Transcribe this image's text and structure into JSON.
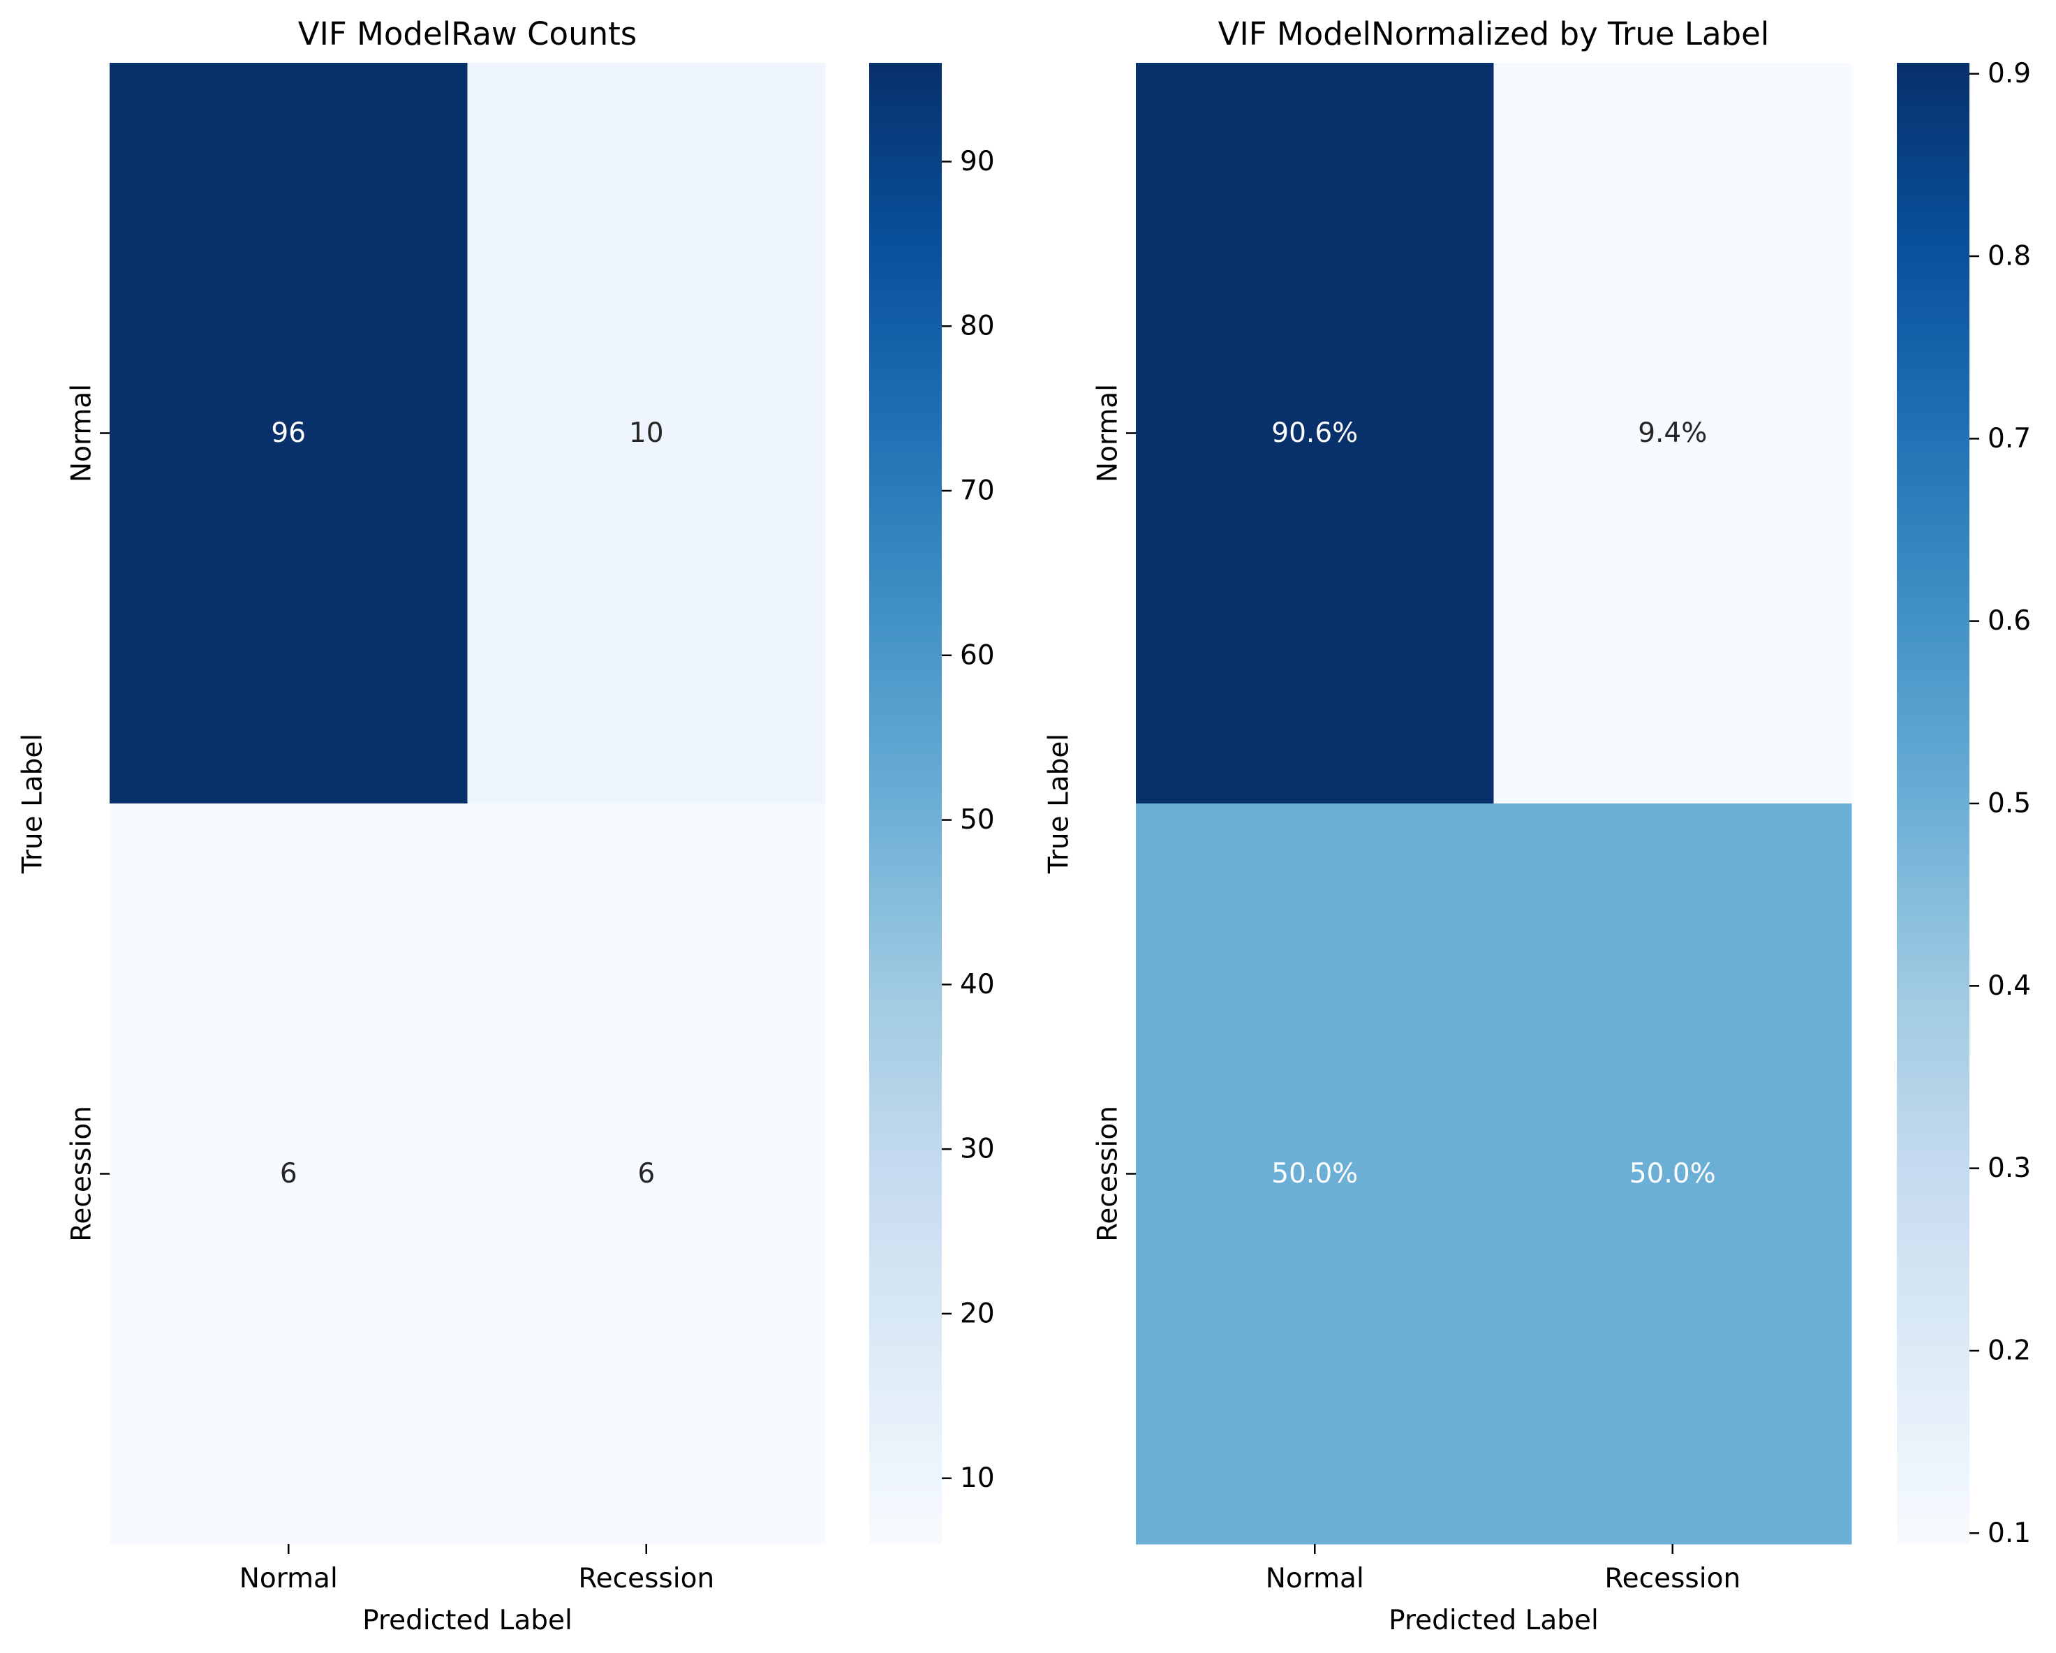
{
  "chart_data": [
    {
      "type": "heatmap",
      "title": "VIF ModelRaw Counts",
      "xlabel": "Predicted Label",
      "ylabel": "True Label",
      "x_categories": [
        "Normal",
        "Recession"
      ],
      "y_categories": [
        "Normal",
        "Recession"
      ],
      "values": [
        [
          96,
          10
        ],
        [
          6,
          6
        ]
      ],
      "cell_labels": [
        [
          "96",
          "10"
        ],
        [
          "6",
          "6"
        ]
      ],
      "colormap": "Blues",
      "vmin": 6,
      "vmax": 96,
      "colorbar_ticks": [
        10,
        20,
        30,
        40,
        50,
        60,
        70,
        80,
        90
      ],
      "colorbar_tick_labels": [
        "10",
        "20",
        "30",
        "40",
        "50",
        "60",
        "70",
        "80",
        "90"
      ]
    },
    {
      "type": "heatmap",
      "title": "VIF ModelNormalized by True Label",
      "xlabel": "Predicted Label",
      "ylabel": "True Label",
      "x_categories": [
        "Normal",
        "Recession"
      ],
      "y_categories": [
        "Normal",
        "Recession"
      ],
      "values": [
        [
          0.906,
          0.094
        ],
        [
          0.5,
          0.5
        ]
      ],
      "cell_labels": [
        [
          "90.6%",
          "9.4%"
        ],
        [
          "50.0%",
          "50.0%"
        ]
      ],
      "colormap": "Blues",
      "vmin": 0.094,
      "vmax": 0.906,
      "colorbar_ticks": [
        0.1,
        0.2,
        0.3,
        0.4,
        0.5,
        0.6,
        0.7,
        0.8,
        0.9
      ],
      "colorbar_tick_labels": [
        "0.1",
        "0.2",
        "0.3",
        "0.4",
        "0.5",
        "0.6",
        "0.7",
        "0.8",
        "0.9"
      ]
    }
  ]
}
